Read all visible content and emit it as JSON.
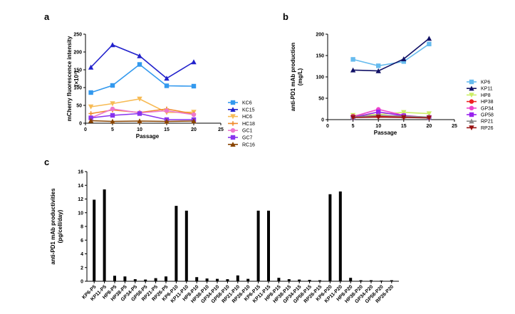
{
  "panels": {
    "a": "a",
    "b": "b",
    "c": "c"
  },
  "chart_data": [
    {
      "type": "line",
      "xlabel": "Passage",
      "ylabel": "mCherry fluorescence intensity",
      "ylabel_unit": "(×10³)",
      "xlim": [
        0,
        25
      ],
      "ylim": [
        0,
        250
      ],
      "xticks": [
        0,
        5,
        10,
        15,
        20,
        25
      ],
      "yticks": [
        0,
        50,
        100,
        150,
        200,
        250
      ],
      "x": [
        1,
        5,
        10,
        15,
        20
      ],
      "legend_position": "right",
      "series": [
        {
          "name": "KC6",
          "values": [
            86,
            106,
            165,
            105,
            104
          ],
          "color": "#3399ee",
          "marker": "square"
        },
        {
          "name": "KC15",
          "values": [
            157,
            220,
            189,
            126,
            172
          ],
          "color": "#2222cc",
          "marker": "triangle"
        },
        {
          "name": "HC6",
          "values": [
            46,
            55,
            68,
            30,
            31
          ],
          "color": "#f7bb55",
          "marker": "triangle-down"
        },
        {
          "name": "HC18",
          "values": [
            27,
            37,
            30,
            40,
            26
          ],
          "color": "#f08a2a",
          "marker": "plus"
        },
        {
          "name": "GC1",
          "values": [
            15,
            40,
            29,
            35,
            24
          ],
          "color": "#ee77cc",
          "marker": "circle"
        },
        {
          "name": "GC7",
          "values": [
            15,
            22,
            27,
            10,
            10
          ],
          "color": "#8833ee",
          "marker": "square"
        },
        {
          "name": "RC16",
          "values": [
            7,
            5,
            6,
            5,
            6
          ],
          "color": "#884400",
          "marker": "triangle"
        }
      ]
    },
    {
      "type": "line",
      "xlabel": "Passage",
      "ylabel": "anti-PD1 mAb production",
      "ylabel_unit": "(mg/L)",
      "xlim": [
        0,
        25
      ],
      "ylim": [
        0,
        200
      ],
      "xticks": [
        0,
        5,
        10,
        15,
        20,
        25
      ],
      "yticks": [
        0,
        50,
        100,
        150,
        200
      ],
      "x": [
        5,
        10,
        15,
        20
      ],
      "legend_position": "right",
      "series": [
        {
          "name": "KP6",
          "values": [
            141,
            126,
            136,
            177
          ],
          "color": "#66bbee",
          "marker": "square"
        },
        {
          "name": "KP11",
          "values": [
            116,
            114,
            142,
            190
          ],
          "color": "#111166",
          "marker": "triangle"
        },
        {
          "name": "HP8",
          "values": [
            10,
            12,
            17,
            14
          ],
          "color": "#ccee66",
          "marker": "triangle-down"
        },
        {
          "name": "HP38",
          "values": [
            8,
            8,
            7,
            6
          ],
          "color": "#ee2222",
          "marker": "circle"
        },
        {
          "name": "GP34",
          "values": [
            7,
            24,
            10,
            5
          ],
          "color": "#ee44cc",
          "marker": "circle"
        },
        {
          "name": "GP58",
          "values": [
            5,
            18,
            9,
            5
          ],
          "color": "#9922ee",
          "marker": "square"
        },
        {
          "name": "RP21",
          "values": [
            6,
            10,
            8,
            6
          ],
          "color": "#888888",
          "marker": "triangle"
        },
        {
          "name": "RP26",
          "values": [
            5,
            6,
            5,
            4
          ],
          "color": "#991111",
          "marker": "triangle-down"
        }
      ]
    },
    {
      "type": "bar",
      "ylabel": "anti-PD1 mAb productivities",
      "ylabel_unit": "(pg/cell/day)",
      "ylim": [
        0,
        16
      ],
      "yticks": [
        0,
        2,
        4,
        6,
        8,
        10,
        12,
        14,
        16
      ],
      "categories": [
        "KP6-P5",
        "KP11-P5",
        "HP8-P5",
        "HP38-P5",
        "GP34-P5",
        "GP58-P5",
        "RP21-P5",
        "RP26-P5",
        "KP6-P10",
        "KP11-P10",
        "HP8-P10",
        "HP38-P10",
        "GP34-P10",
        "GP58-P10",
        "RP21-P10",
        "RP26-P10",
        "KP6-P15",
        "KP11-P15",
        "HP8-P15",
        "HP38-P15",
        "GP34-P15",
        "GP58-P15",
        "RP26-P15",
        "KP6-P20",
        "KP11-P20",
        "HP8-P20",
        "HP38-P20",
        "GP34-P20",
        "GP58-P20",
        "RP26-P20"
      ],
      "values": [
        11.9,
        13.4,
        0.8,
        0.7,
        0.3,
        0.25,
        0.45,
        0.7,
        11.0,
        10.3,
        0.6,
        0.4,
        0.35,
        0.3,
        0.85,
        0.35,
        10.3,
        10.3,
        0.5,
        0.3,
        0.25,
        0.2,
        0.15,
        12.7,
        13.1,
        0.5,
        0.15,
        0.15,
        0.1,
        0.15
      ],
      "color": "#000000"
    }
  ]
}
